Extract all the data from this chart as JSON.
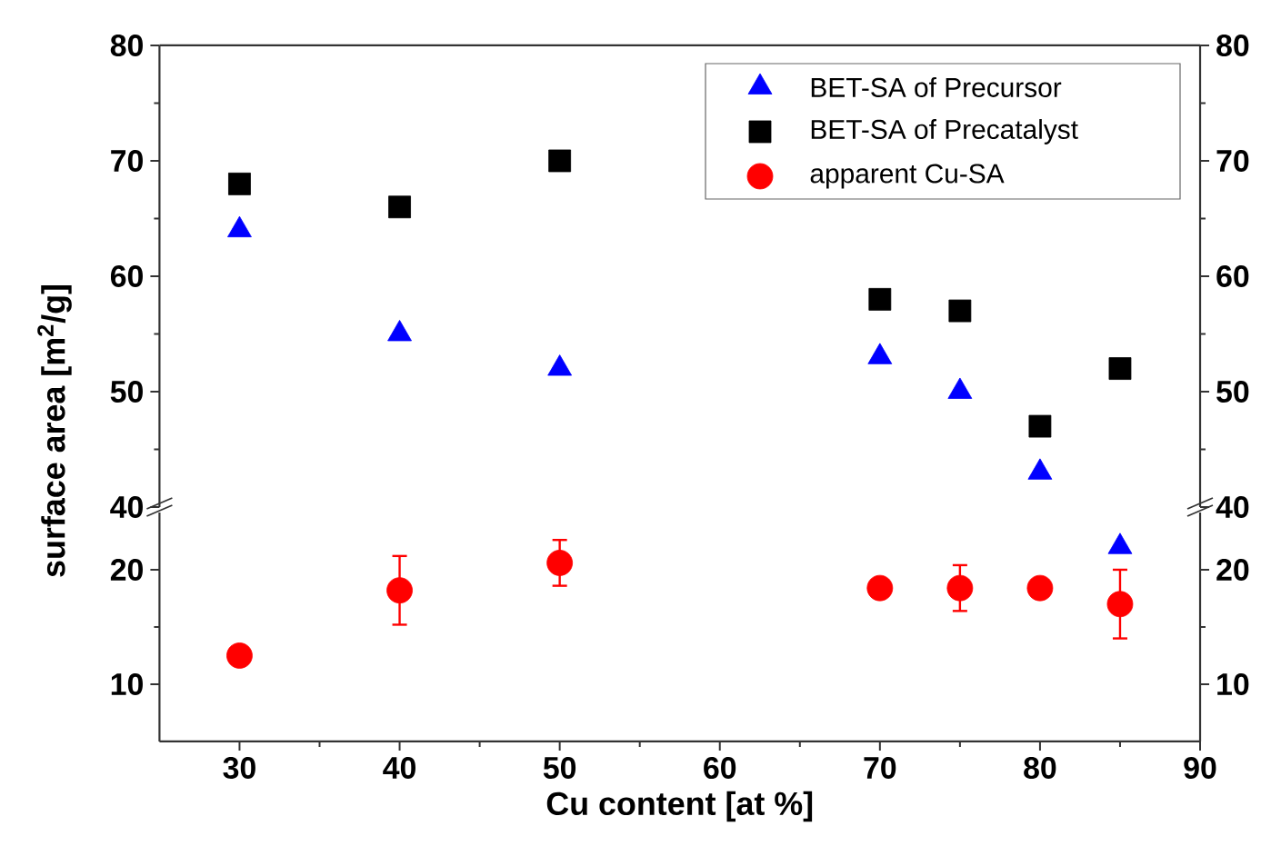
{
  "chart_data": [
    {
      "type": "scatter",
      "ylabel": "surface area [m$^{2}$/g]",
      "xlim": [
        25,
        90
      ],
      "ylim": [
        40,
        80
      ],
      "yticks": [
        40,
        50,
        60,
        70,
        80
      ],
      "y2lim": [
        40,
        80
      ],
      "y2ticks": [
        40,
        50,
        60,
        70,
        80
      ],
      "tick_labels": "y",
      "legend": "top right",
      "grid": false,
      "x": [
        30,
        40,
        50,
        70,
        75,
        80,
        85
      ],
      "series": [
        {
          "name": "BET-SA of Precursor",
          "color": "#0000ff",
          "marker": "triangle",
          "values": [
            64,
            55,
            52,
            53,
            50,
            43,
            null
          ]
        },
        {
          "name": "BET-SA of Precatalyst",
          "color": "#000000",
          "marker": "square",
          "values": [
            68,
            66,
            70,
            58,
            57,
            47,
            52
          ]
        }
      ]
    },
    {
      "type": "scatter",
      "xlabel": "Cu content [at %]",
      "xlim": [
        25,
        90
      ],
      "xticks": [
        30,
        40,
        50,
        60,
        70,
        80,
        90
      ],
      "ylim": [
        5,
        25
      ],
      "yticks": [
        10,
        20
      ],
      "y2lim": [
        5,
        25
      ],
      "y2ticks": [
        10,
        20
      ],
      "grid": false,
      "x": [
        30,
        40,
        50,
        70,
        75,
        80,
        85
      ],
      "series": [
        {
          "name": "apparent Cu-SA",
          "color": "#ff0000",
          "marker": "circle",
          "values": [
            12.5,
            18.2,
            20.6,
            18.4,
            18.4,
            18.4,
            17.0
          ],
          "errors": [
            null,
            3,
            2,
            null,
            2,
            null,
            3
          ]
        },
        {
          "color": "#0000ff",
          "marker": "triangle",
          "values": [
            null,
            null,
            null,
            null,
            null,
            null,
            22
          ]
        }
      ]
    }
  ]
}
